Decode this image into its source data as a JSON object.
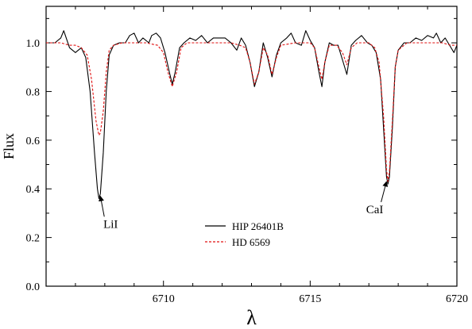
{
  "chart_data": {
    "type": "line",
    "xlabel": "λ",
    "ylabel": "Flux",
    "xlim": [
      6706,
      6720
    ],
    "ylim": [
      0,
      1.15
    ],
    "x_ticks": [
      6710,
      6715,
      6720
    ],
    "y_ticks": [
      0.0,
      0.2,
      0.4,
      0.6,
      0.8,
      1.0
    ],
    "x_tick_labels": [
      "6710",
      "6715",
      "6720"
    ],
    "y_tick_labels": [
      "0.0",
      "0.2",
      "0.4",
      "0.6",
      "0.8",
      "1.0"
    ],
    "grid": false,
    "legend_position": "bottom-center",
    "series": [
      {
        "name": "HIP 26401B",
        "color": "#000000",
        "style": "solid",
        "points": [
          [
            6706.0,
            1.0
          ],
          [
            6706.3,
            1.0
          ],
          [
            6706.5,
            1.02
          ],
          [
            6706.6,
            1.05
          ],
          [
            6706.8,
            0.98
          ],
          [
            6707.0,
            0.96
          ],
          [
            6707.2,
            0.98
          ],
          [
            6707.35,
            0.94
          ],
          [
            6707.5,
            0.8
          ],
          [
            6707.65,
            0.55
          ],
          [
            6707.75,
            0.4
          ],
          [
            6707.8,
            0.36
          ],
          [
            6707.85,
            0.38
          ],
          [
            6707.95,
            0.55
          ],
          [
            6708.05,
            0.8
          ],
          [
            6708.15,
            0.95
          ],
          [
            6708.3,
            0.99
          ],
          [
            6708.5,
            1.0
          ],
          [
            6708.7,
            1.0
          ],
          [
            6708.85,
            1.03
          ],
          [
            6709.0,
            1.04
          ],
          [
            6709.15,
            1.0
          ],
          [
            6709.3,
            1.02
          ],
          [
            6709.5,
            1.0
          ],
          [
            6709.6,
            1.03
          ],
          [
            6709.75,
            1.04
          ],
          [
            6709.9,
            1.02
          ],
          [
            6710.05,
            0.96
          ],
          [
            6710.2,
            0.88
          ],
          [
            6710.3,
            0.83
          ],
          [
            6710.4,
            0.88
          ],
          [
            6710.55,
            0.98
          ],
          [
            6710.7,
            1.0
          ],
          [
            6710.9,
            1.02
          ],
          [
            6711.1,
            1.01
          ],
          [
            6711.3,
            1.03
          ],
          [
            6711.5,
            1.0
          ],
          [
            6711.7,
            1.02
          ],
          [
            6711.9,
            1.02
          ],
          [
            6712.1,
            1.02
          ],
          [
            6712.3,
            1.0
          ],
          [
            6712.5,
            0.97
          ],
          [
            6712.65,
            1.02
          ],
          [
            6712.8,
            0.99
          ],
          [
            6712.95,
            0.92
          ],
          [
            6713.1,
            0.82
          ],
          [
            6713.25,
            0.88
          ],
          [
            6713.4,
            1.0
          ],
          [
            6713.55,
            0.94
          ],
          [
            6713.7,
            0.86
          ],
          [
            6713.85,
            0.95
          ],
          [
            6714.0,
            1.0
          ],
          [
            6714.2,
            1.02
          ],
          [
            6714.35,
            1.04
          ],
          [
            6714.5,
            1.0
          ],
          [
            6714.7,
            0.99
          ],
          [
            6714.85,
            1.05
          ],
          [
            6715.0,
            1.01
          ],
          [
            6715.15,
            0.98
          ],
          [
            6715.3,
            0.88
          ],
          [
            6715.4,
            0.82
          ],
          [
            6715.5,
            0.92
          ],
          [
            6715.65,
            1.0
          ],
          [
            6715.8,
            0.99
          ],
          [
            6715.95,
            0.99
          ],
          [
            6716.1,
            0.93
          ],
          [
            6716.25,
            0.87
          ],
          [
            6716.4,
            0.99
          ],
          [
            6716.55,
            1.01
          ],
          [
            6716.75,
            1.03
          ],
          [
            6716.95,
            1.0
          ],
          [
            6717.1,
            0.99
          ],
          [
            6717.25,
            0.96
          ],
          [
            6717.4,
            0.85
          ],
          [
            6717.5,
            0.65
          ],
          [
            6717.6,
            0.45
          ],
          [
            6717.65,
            0.42
          ],
          [
            6717.7,
            0.45
          ],
          [
            6717.8,
            0.65
          ],
          [
            6717.9,
            0.9
          ],
          [
            6718.0,
            0.97
          ],
          [
            6718.2,
            1.0
          ],
          [
            6718.4,
            1.0
          ],
          [
            6718.6,
            1.02
          ],
          [
            6718.8,
            1.01
          ],
          [
            6719.0,
            1.03
          ],
          [
            6719.2,
            1.02
          ],
          [
            6719.3,
            1.04
          ],
          [
            6719.45,
            1.0
          ],
          [
            6719.6,
            1.02
          ],
          [
            6719.75,
            0.99
          ],
          [
            6719.9,
            0.96
          ],
          [
            6720.0,
            0.99
          ]
        ]
      },
      {
        "name": "HD 6569",
        "color": "#e01010",
        "style": "dashed",
        "points": [
          [
            6706.0,
            1.0
          ],
          [
            6706.5,
            1.0
          ],
          [
            6706.8,
            0.99
          ],
          [
            6707.0,
            0.99
          ],
          [
            6707.2,
            0.98
          ],
          [
            6707.4,
            0.95
          ],
          [
            6707.55,
            0.85
          ],
          [
            6707.7,
            0.68
          ],
          [
            6707.8,
            0.62
          ],
          [
            6707.85,
            0.63
          ],
          [
            6707.95,
            0.72
          ],
          [
            6708.05,
            0.88
          ],
          [
            6708.15,
            0.97
          ],
          [
            6708.3,
            0.99
          ],
          [
            6708.6,
            1.0
          ],
          [
            6709.0,
            1.0
          ],
          [
            6709.4,
            1.0
          ],
          [
            6709.8,
            0.99
          ],
          [
            6710.0,
            0.96
          ],
          [
            6710.15,
            0.88
          ],
          [
            6710.3,
            0.82
          ],
          [
            6710.45,
            0.88
          ],
          [
            6710.6,
            0.98
          ],
          [
            6710.8,
            1.0
          ],
          [
            6711.5,
            1.0
          ],
          [
            6712.3,
            1.0
          ],
          [
            6712.6,
            0.99
          ],
          [
            6712.8,
            0.98
          ],
          [
            6712.95,
            0.92
          ],
          [
            6713.1,
            0.83
          ],
          [
            6713.25,
            0.88
          ],
          [
            6713.4,
            0.98
          ],
          [
            6713.55,
            0.95
          ],
          [
            6713.7,
            0.87
          ],
          [
            6713.85,
            0.94
          ],
          [
            6714.0,
            0.99
          ],
          [
            6714.5,
            1.0
          ],
          [
            6715.0,
            1.0
          ],
          [
            6715.15,
            0.98
          ],
          [
            6715.3,
            0.9
          ],
          [
            6715.4,
            0.85
          ],
          [
            6715.5,
            0.92
          ],
          [
            6715.65,
            0.99
          ],
          [
            6715.9,
            0.99
          ],
          [
            6716.1,
            0.96
          ],
          [
            6716.25,
            0.91
          ],
          [
            6716.4,
            0.98
          ],
          [
            6716.6,
            1.0
          ],
          [
            6717.0,
            1.0
          ],
          [
            6717.2,
            0.98
          ],
          [
            6717.35,
            0.92
          ],
          [
            6717.5,
            0.7
          ],
          [
            6717.6,
            0.48
          ],
          [
            6717.65,
            0.43
          ],
          [
            6717.7,
            0.47
          ],
          [
            6717.8,
            0.68
          ],
          [
            6717.9,
            0.9
          ],
          [
            6718.0,
            0.97
          ],
          [
            6718.3,
            1.0
          ],
          [
            6719.0,
            1.0
          ],
          [
            6719.5,
            1.0
          ],
          [
            6719.8,
            0.99
          ],
          [
            6720.0,
            0.99
          ]
        ]
      }
    ],
    "annotations": [
      {
        "text": "LiI",
        "x": 6708.2,
        "y": 0.24,
        "arrow_to": [
          6707.85,
          0.37
        ]
      },
      {
        "text": "CaI",
        "x": 6717.2,
        "y": 0.3,
        "arrow_to": [
          6717.6,
          0.43
        ]
      }
    ]
  }
}
